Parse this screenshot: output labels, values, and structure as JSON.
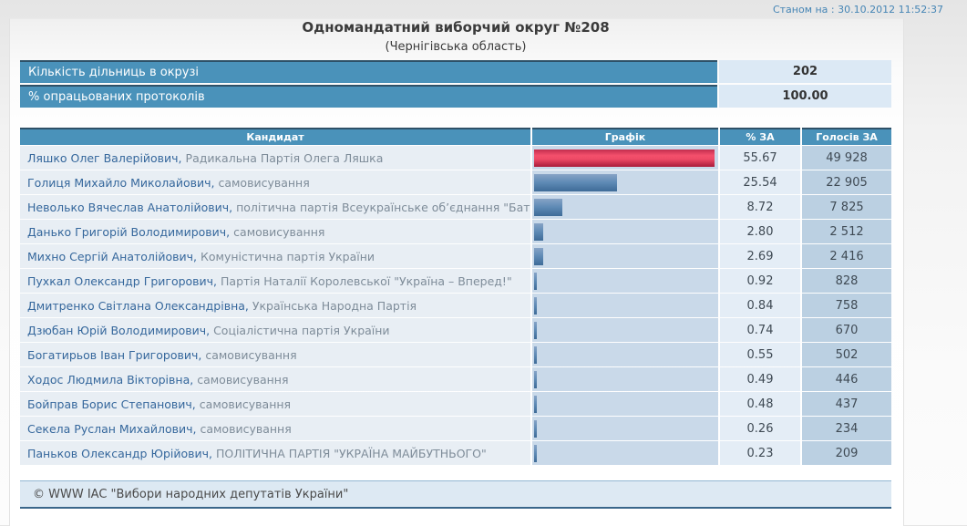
{
  "meta": {
    "timestamp": "Станом на : 30.10.2012 11:52:37"
  },
  "header": {
    "title": "Одномандатний виборчий округ №208",
    "subtitle": "(Чернігівська область)"
  },
  "summary": {
    "rows": [
      {
        "label": "Кількість дільниць в окрузі",
        "value": "202"
      },
      {
        "label": "% опрацьованих протоколів",
        "value": "100.00"
      }
    ]
  },
  "results_table": {
    "columns": [
      "Кандидат",
      "Графік",
      "% ЗА",
      "Голосів ЗА"
    ],
    "max_percent": 55.67,
    "rows": [
      {
        "name": "Ляшко Олег Валерійович,",
        "party": "Радикальна Партія Олега Ляшка",
        "percent": "55.67",
        "votes": "49 928",
        "bar_color": "red"
      },
      {
        "name": "Голиця Михайло Миколайович,",
        "party": "самовисування",
        "percent": "25.54",
        "votes": "22 905",
        "bar_color": "blue"
      },
      {
        "name": "Неволько Вячеслав Анатолійович,",
        "party": "політична партія Всеукраїнське об’єднання \"Батьківщина\"",
        "percent": "8.72",
        "votes": "7 825",
        "bar_color": "blue"
      },
      {
        "name": "Данько Григорій Володимирович,",
        "party": "самовисування",
        "percent": "2.80",
        "votes": "2 512",
        "bar_color": "blue"
      },
      {
        "name": "Михно Сергій Анатолійович,",
        "party": "Комуністична партія України",
        "percent": "2.69",
        "votes": "2 416",
        "bar_color": "blue"
      },
      {
        "name": "Пухкал Олександр Григорович,",
        "party": "Партія Наталії Королевської \"Україна – Вперед!\"",
        "percent": "0.92",
        "votes": "828",
        "bar_color": "blue"
      },
      {
        "name": "Дмитренко Світлана Олександрівна,",
        "party": "Українська Народна Партія",
        "percent": "0.84",
        "votes": "758",
        "bar_color": "blue"
      },
      {
        "name": "Дзюбан Юрій Володимирович,",
        "party": "Соціалістична партія України",
        "percent": "0.74",
        "votes": "670",
        "bar_color": "blue"
      },
      {
        "name": "Богатирьов Іван Григорович,",
        "party": "самовисування",
        "percent": "0.55",
        "votes": "502",
        "bar_color": "blue"
      },
      {
        "name": "Ходос Людмила Вікторівна,",
        "party": "самовисування",
        "percent": "0.49",
        "votes": "446",
        "bar_color": "blue"
      },
      {
        "name": "Бойправ Борис Степанович,",
        "party": "самовисування",
        "percent": "0.48",
        "votes": "437",
        "bar_color": "blue"
      },
      {
        "name": "Секела Руслан Михайлович,",
        "party": "самовисування",
        "percent": "0.26",
        "votes": "234",
        "bar_color": "blue"
      },
      {
        "name": "Паньков Олександр Юрійович,",
        "party": "ПОЛІТИЧНА ПАРТІЯ \"УКРАЇНА МАЙБУТНЬОГО\"",
        "percent": "0.23",
        "votes": "209",
        "bar_color": "blue"
      }
    ]
  },
  "footer": {
    "copyright": "© WWW IAC \"Вибори народних депутатів України\""
  },
  "colors": {
    "accent_header": "#4a92ba",
    "header_border": "#2e5168",
    "bar_red": "#ee4a66",
    "bar_blue": "#5d89b4",
    "graph_cell_bg": "#c9d9e9",
    "votes_cell_bg": "#bbd0e2",
    "timestamp_blue": "#4585b5"
  },
  "chart_data": {
    "type": "bar",
    "orientation": "horizontal",
    "title": "Одномандатний виборчий округ №208 (Чернігівська область)",
    "categories": [
      "Ляшко Олег Валерійович",
      "Голиця Михайло Миколайович",
      "Неволько Вячеслав Анатолійович",
      "Данько Григорій Володимирович",
      "Михно Сергій Анатолійович",
      "Пухкал Олександр Григорович",
      "Дмитренко Світлана Олександрівна",
      "Дзюбан Юрій Володимирович",
      "Богатирьов Іван Григорович",
      "Ходос Людмила Вікторівна",
      "Бойправ Борис Степанович",
      "Секела Руслан Михайлович",
      "Паньков Олександр Юрійович"
    ],
    "series": [
      {
        "name": "% ЗА",
        "values": [
          55.67,
          25.54,
          8.72,
          2.8,
          2.69,
          0.92,
          0.84,
          0.74,
          0.55,
          0.49,
          0.48,
          0.26,
          0.23
        ]
      },
      {
        "name": "Голосів ЗА",
        "values": [
          49928,
          22905,
          7825,
          2512,
          2416,
          828,
          758,
          670,
          502,
          446,
          437,
          234,
          209
        ]
      }
    ],
    "xlim": [
      0,
      55.67
    ],
    "legend": false,
    "grid": false
  }
}
